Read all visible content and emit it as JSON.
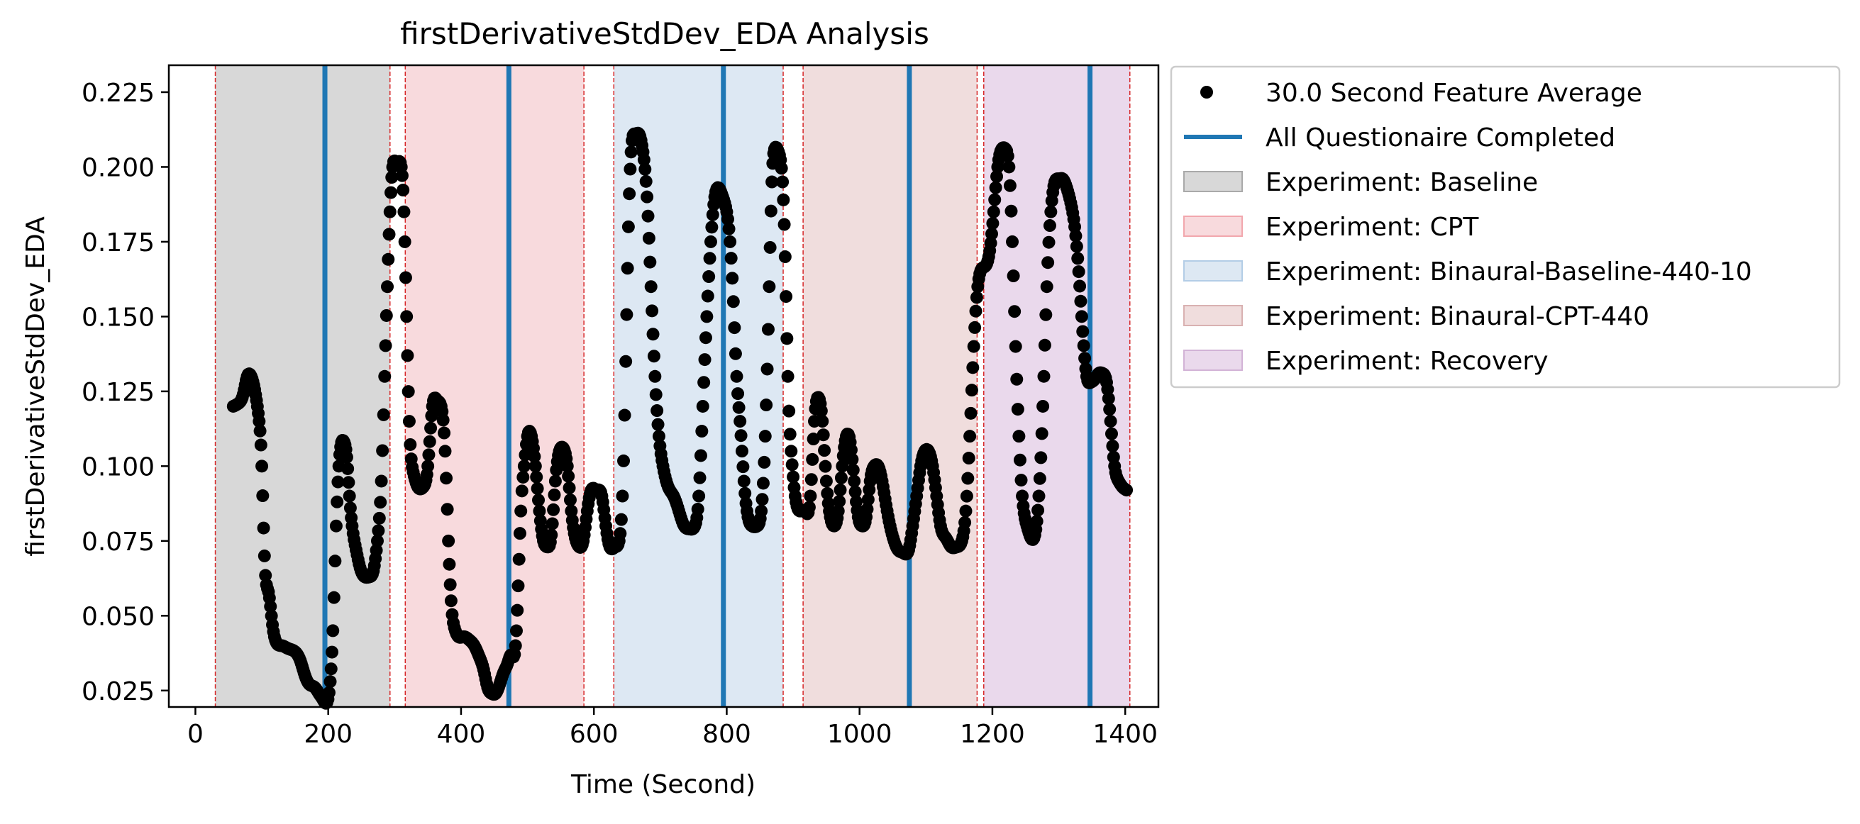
{
  "chart_data": {
    "type": "scatter",
    "title": "firstDerivativeStdDev_EDA Analysis",
    "xlabel": "Time (Second)",
    "ylabel": "firstDerivativeStdDev_EDA",
    "xlim": [
      -40,
      1450
    ],
    "ylim": [
      0.0195,
      0.234
    ],
    "xticks": [
      0,
      200,
      400,
      600,
      800,
      1000,
      1200,
      1400
    ],
    "yticks": [
      0.025,
      0.05,
      0.075,
      0.1,
      0.125,
      0.15,
      0.175,
      0.2,
      0.225
    ],
    "ytick_labels": [
      "0.025",
      "0.050",
      "0.075",
      "0.100",
      "0.125",
      "0.150",
      "0.175",
      "0.200",
      "0.225"
    ],
    "grid": false,
    "legend_position": "outside-right-top",
    "colors": {
      "points": "#000000",
      "questionnaire_line": "#1f77b4",
      "boundary_line": "#d62728",
      "Baseline": "#d8d8d8",
      "CPT": "#f8dadd",
      "Binaural-Baseline-440-10": "#dde8f3",
      "Binaural-CPT-440": "#f0dddd",
      "Recovery": "#ead9ec"
    },
    "experiment_regions": [
      {
        "name": "Experiment: Baseline",
        "key": "Baseline",
        "start": 30,
        "end": 293
      },
      {
        "name": "Experiment: CPT",
        "key": "CPT",
        "start": 316,
        "end": 585
      },
      {
        "name": "Experiment: Binaural-Baseline-440-10",
        "key": "Binaural-Baseline-440-10",
        "start": 630,
        "end": 885
      },
      {
        "name": "Experiment: Binaural-CPT-440",
        "key": "Binaural-CPT-440",
        "start": 915,
        "end": 1177
      },
      {
        "name": "Experiment: Recovery",
        "key": "Recovery",
        "start": 1187,
        "end": 1407
      }
    ],
    "questionnaire_lines": [
      195,
      472,
      795,
      1075,
      1347
    ],
    "series": [
      {
        "name": "30.0 Second Feature Average",
        "points": [
          [
            57,
            0.12
          ],
          [
            65,
            0.121
          ],
          [
            72,
            0.124
          ],
          [
            78,
            0.13
          ],
          [
            84,
            0.13
          ],
          [
            88,
            0.127
          ],
          [
            92,
            0.122
          ],
          [
            96,
            0.115
          ],
          [
            100,
            0.1
          ],
          [
            104,
            0.07
          ],
          [
            110,
            0.058
          ],
          [
            116,
            0.047
          ],
          [
            122,
            0.041
          ],
          [
            130,
            0.04
          ],
          [
            140,
            0.039
          ],
          [
            150,
            0.038
          ],
          [
            158,
            0.035
          ],
          [
            165,
            0.03
          ],
          [
            172,
            0.027
          ],
          [
            180,
            0.026
          ],
          [
            186,
            0.024
          ],
          [
            192,
            0.022
          ],
          [
            198,
            0.021
          ],
          [
            203,
            0.028
          ],
          [
            207,
            0.045
          ],
          [
            212,
            0.08
          ],
          [
            216,
            0.1
          ],
          [
            220,
            0.108
          ],
          [
            224,
            0.108
          ],
          [
            228,
            0.103
          ],
          [
            232,
            0.09
          ],
          [
            236,
            0.08
          ],
          [
            242,
            0.072
          ],
          [
            248,
            0.066
          ],
          [
            255,
            0.063
          ],
          [
            262,
            0.063
          ],
          [
            268,
            0.065
          ],
          [
            274,
            0.075
          ],
          [
            280,
            0.095
          ],
          [
            285,
            0.13
          ],
          [
            289,
            0.16
          ],
          [
            293,
            0.185
          ],
          [
            297,
            0.2
          ],
          [
            303,
            0.201
          ],
          [
            310,
            0.2
          ],
          [
            314,
            0.185
          ],
          [
            318,
            0.15
          ],
          [
            322,
            0.115
          ],
          [
            328,
            0.098
          ],
          [
            335,
            0.093
          ],
          [
            343,
            0.093
          ],
          [
            350,
            0.1
          ],
          [
            357,
            0.12
          ],
          [
            364,
            0.122
          ],
          [
            370,
            0.12
          ],
          [
            376,
            0.105
          ],
          [
            381,
            0.075
          ],
          [
            385,
            0.055
          ],
          [
            390,
            0.046
          ],
          [
            396,
            0.043
          ],
          [
            404,
            0.043
          ],
          [
            412,
            0.042
          ],
          [
            420,
            0.04
          ],
          [
            428,
            0.036
          ],
          [
            434,
            0.032
          ],
          [
            440,
            0.026
          ],
          [
            446,
            0.024
          ],
          [
            452,
            0.024
          ],
          [
            458,
            0.027
          ],
          [
            464,
            0.031
          ],
          [
            470,
            0.034
          ],
          [
            476,
            0.037
          ],
          [
            482,
            0.04
          ],
          [
            486,
            0.06
          ],
          [
            490,
            0.085
          ],
          [
            495,
            0.1
          ],
          [
            500,
            0.11
          ],
          [
            506,
            0.11
          ],
          [
            512,
            0.1
          ],
          [
            518,
            0.085
          ],
          [
            524,
            0.075
          ],
          [
            530,
            0.073
          ],
          [
            536,
            0.077
          ],
          [
            542,
            0.095
          ],
          [
            548,
            0.105
          ],
          [
            554,
            0.106
          ],
          [
            560,
            0.1
          ],
          [
            566,
            0.085
          ],
          [
            572,
            0.076
          ],
          [
            578,
            0.073
          ],
          [
            584,
            0.075
          ],
          [
            590,
            0.085
          ],
          [
            596,
            0.092
          ],
          [
            604,
            0.092
          ],
          [
            612,
            0.09
          ],
          [
            618,
            0.08
          ],
          [
            624,
            0.073
          ],
          [
            632,
            0.073
          ],
          [
            638,
            0.075
          ],
          [
            643,
            0.09
          ],
          [
            648,
            0.135
          ],
          [
            652,
            0.18
          ],
          [
            656,
            0.205
          ],
          [
            662,
            0.211
          ],
          [
            668,
            0.211
          ],
          [
            674,
            0.205
          ],
          [
            680,
            0.19
          ],
          [
            686,
            0.16
          ],
          [
            692,
            0.13
          ],
          [
            698,
            0.11
          ],
          [
            704,
            0.1
          ],
          [
            712,
            0.093
          ],
          [
            720,
            0.09
          ],
          [
            728,
            0.085
          ],
          [
            736,
            0.08
          ],
          [
            744,
            0.079
          ],
          [
            752,
            0.08
          ],
          [
            758,
            0.09
          ],
          [
            764,
            0.12
          ],
          [
            770,
            0.15
          ],
          [
            776,
            0.175
          ],
          [
            782,
            0.19
          ],
          [
            788,
            0.193
          ],
          [
            794,
            0.19
          ],
          [
            800,
            0.185
          ],
          [
            805,
            0.175
          ],
          [
            810,
            0.155
          ],
          [
            815,
            0.13
          ],
          [
            820,
            0.115
          ],
          [
            826,
            0.095
          ],
          [
            832,
            0.083
          ],
          [
            838,
            0.08
          ],
          [
            846,
            0.08
          ],
          [
            852,
            0.085
          ],
          [
            858,
            0.11
          ],
          [
            864,
            0.16
          ],
          [
            868,
            0.195
          ],
          [
            872,
            0.206
          ],
          [
            878,
            0.205
          ],
          [
            884,
            0.195
          ],
          [
            888,
            0.17
          ],
          [
            892,
            0.13
          ],
          [
            897,
            0.105
          ],
          [
            903,
            0.09
          ],
          [
            910,
            0.085
          ],
          [
            918,
            0.085
          ],
          [
            926,
            0.09
          ],
          [
            932,
            0.115
          ],
          [
            938,
            0.123
          ],
          [
            944,
            0.115
          ],
          [
            950,
            0.095
          ],
          [
            956,
            0.083
          ],
          [
            962,
            0.08
          ],
          [
            968,
            0.085
          ],
          [
            974,
            0.1
          ],
          [
            980,
            0.11
          ],
          [
            986,
            0.108
          ],
          [
            992,
            0.095
          ],
          [
            998,
            0.083
          ],
          [
            1004,
            0.08
          ],
          [
            1010,
            0.083
          ],
          [
            1016,
            0.095
          ],
          [
            1022,
            0.1
          ],
          [
            1028,
            0.1
          ],
          [
            1034,
            0.095
          ],
          [
            1040,
            0.087
          ],
          [
            1046,
            0.08
          ],
          [
            1052,
            0.075
          ],
          [
            1058,
            0.072
          ],
          [
            1066,
            0.071
          ],
          [
            1074,
            0.072
          ],
          [
            1080,
            0.08
          ],
          [
            1086,
            0.09
          ],
          [
            1092,
            0.1
          ],
          [
            1098,
            0.105
          ],
          [
            1104,
            0.105
          ],
          [
            1110,
            0.1
          ],
          [
            1116,
            0.09
          ],
          [
            1122,
            0.08
          ],
          [
            1130,
            0.076
          ],
          [
            1138,
            0.073
          ],
          [
            1146,
            0.073
          ],
          [
            1154,
            0.075
          ],
          [
            1160,
            0.085
          ],
          [
            1166,
            0.11
          ],
          [
            1172,
            0.14
          ],
          [
            1178,
            0.16
          ],
          [
            1184,
            0.166
          ],
          [
            1190,
            0.167
          ],
          [
            1196,
            0.172
          ],
          [
            1202,
            0.185
          ],
          [
            1208,
            0.2
          ],
          [
            1214,
            0.206
          ],
          [
            1220,
            0.206
          ],
          [
            1225,
            0.2
          ],
          [
            1230,
            0.175
          ],
          [
            1235,
            0.14
          ],
          [
            1240,
            0.11
          ],
          [
            1245,
            0.09
          ],
          [
            1252,
            0.08
          ],
          [
            1258,
            0.076
          ],
          [
            1264,
            0.077
          ],
          [
            1270,
            0.09
          ],
          [
            1276,
            0.12
          ],
          [
            1282,
            0.16
          ],
          [
            1288,
            0.185
          ],
          [
            1294,
            0.195
          ],
          [
            1300,
            0.196
          ],
          [
            1306,
            0.196
          ],
          [
            1312,
            0.193
          ],
          [
            1318,
            0.188
          ],
          [
            1324,
            0.18
          ],
          [
            1330,
            0.165
          ],
          [
            1336,
            0.145
          ],
          [
            1342,
            0.13
          ],
          [
            1348,
            0.128
          ],
          [
            1354,
            0.129
          ],
          [
            1360,
            0.131
          ],
          [
            1366,
            0.131
          ],
          [
            1372,
            0.128
          ],
          [
            1378,
            0.115
          ],
          [
            1384,
            0.1
          ],
          [
            1390,
            0.095
          ],
          [
            1396,
            0.093
          ],
          [
            1402,
            0.092
          ]
        ]
      }
    ],
    "legend": [
      {
        "kind": "marker",
        "label": "30.0 Second Feature Average",
        "color": "#000000"
      },
      {
        "kind": "line",
        "label": "All Questionaire Completed",
        "color": "#1f77b4"
      },
      {
        "kind": "patch",
        "label": "Experiment: Baseline",
        "fill": "#d8d8d8",
        "stroke": "#a9a9a9"
      },
      {
        "kind": "patch",
        "label": "Experiment: CPT",
        "fill": "#f8dadd",
        "stroke": "#f2a7ad"
      },
      {
        "kind": "patch",
        "label": "Experiment: Binaural-Baseline-440-10",
        "fill": "#dde8f3",
        "stroke": "#b3cde6"
      },
      {
        "kind": "patch",
        "label": "Experiment: Binaural-CPT-440",
        "fill": "#f0dddd",
        "stroke": "#d9b1b1"
      },
      {
        "kind": "patch",
        "label": "Experiment: Recovery",
        "fill": "#ead9ec",
        "stroke": "#d2b3d6"
      }
    ]
  }
}
